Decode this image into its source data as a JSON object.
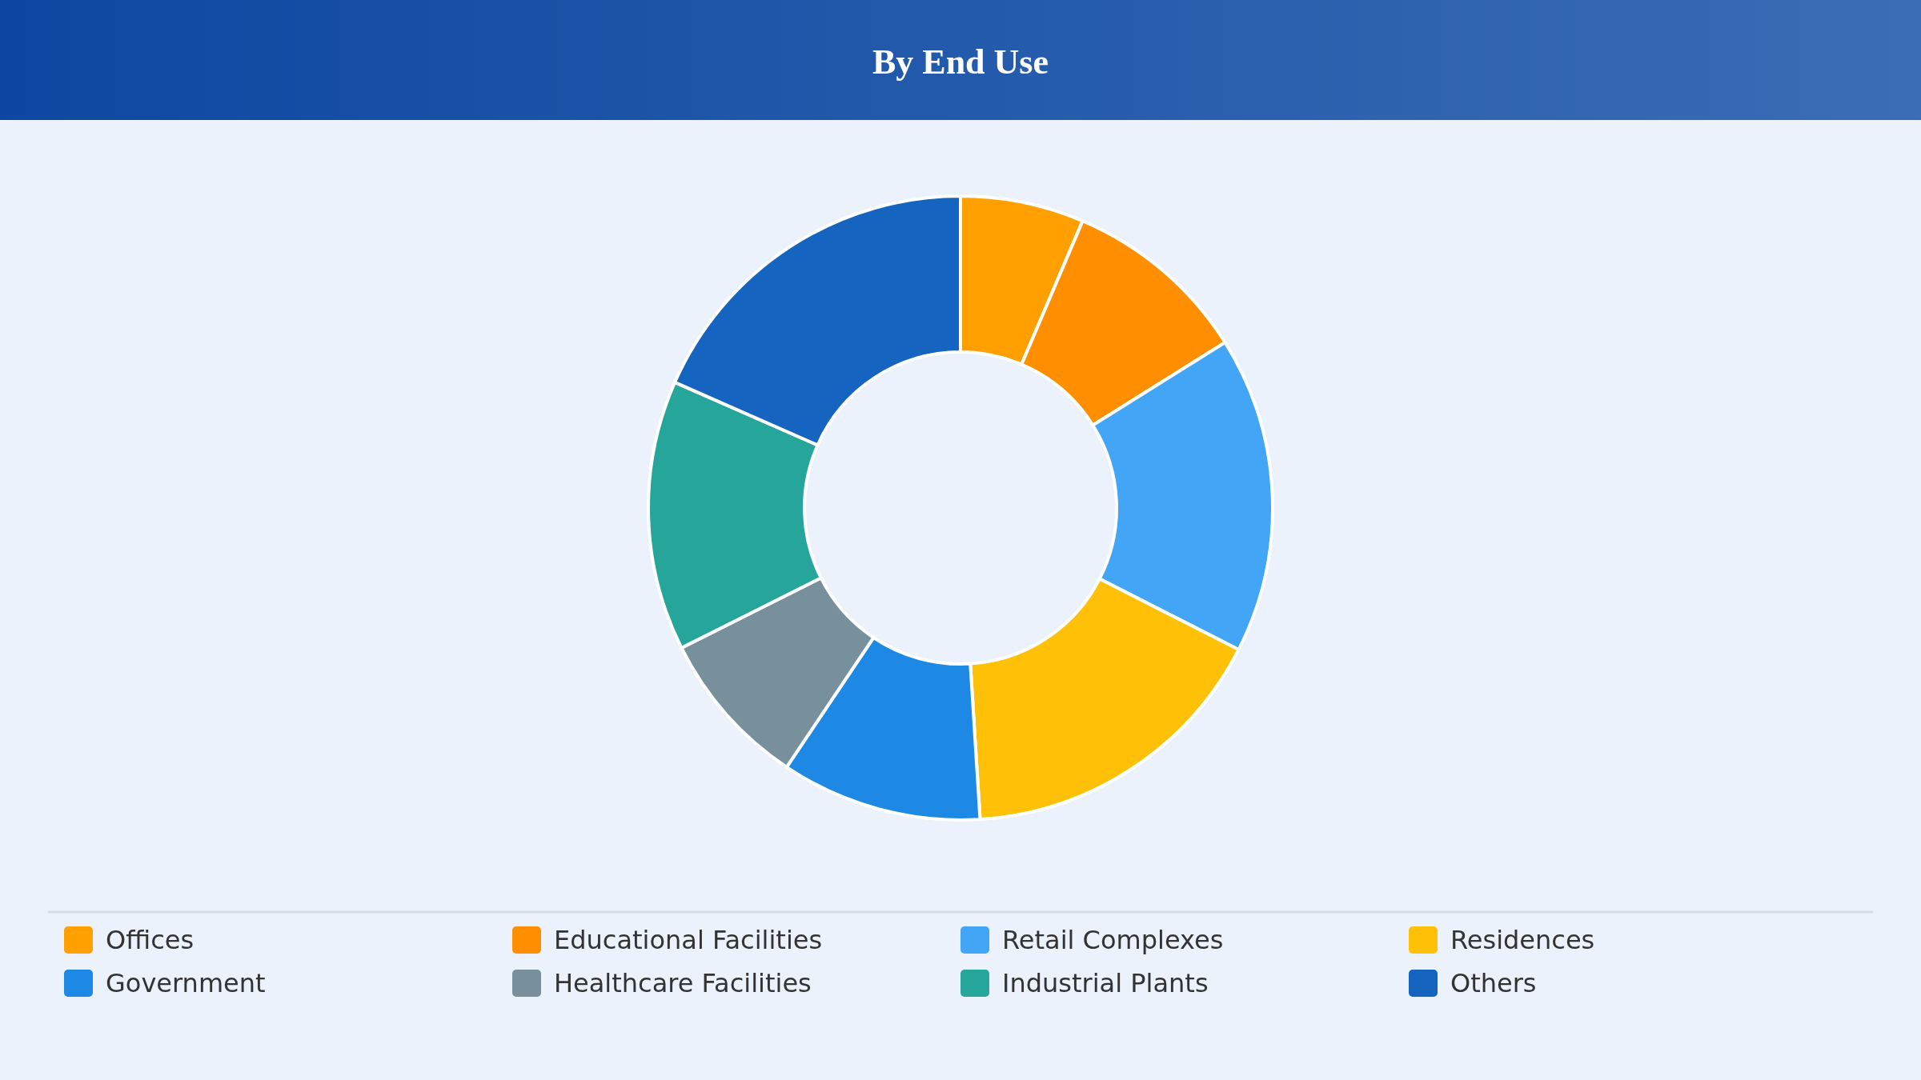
{
  "chart_data": {
    "type": "donut",
    "title": "By End Use",
    "categories": [
      "Offices",
      "Educational Facilities",
      "Retail Complexes",
      "Residences",
      "Government",
      "Healthcare Facilities",
      "Industrial Plants",
      "Others"
    ],
    "values": [
      6.4,
      9.7,
      16.4,
      16.5,
      10.4,
      8.2,
      14.0,
      18.4
    ],
    "colors": [
      "#ffa000",
      "#ff8f00",
      "#42a5f5",
      "#ffc107",
      "#1e88e5",
      "#78909c",
      "#26a69a",
      "#1565c0"
    ],
    "legend": "bottom"
  }
}
